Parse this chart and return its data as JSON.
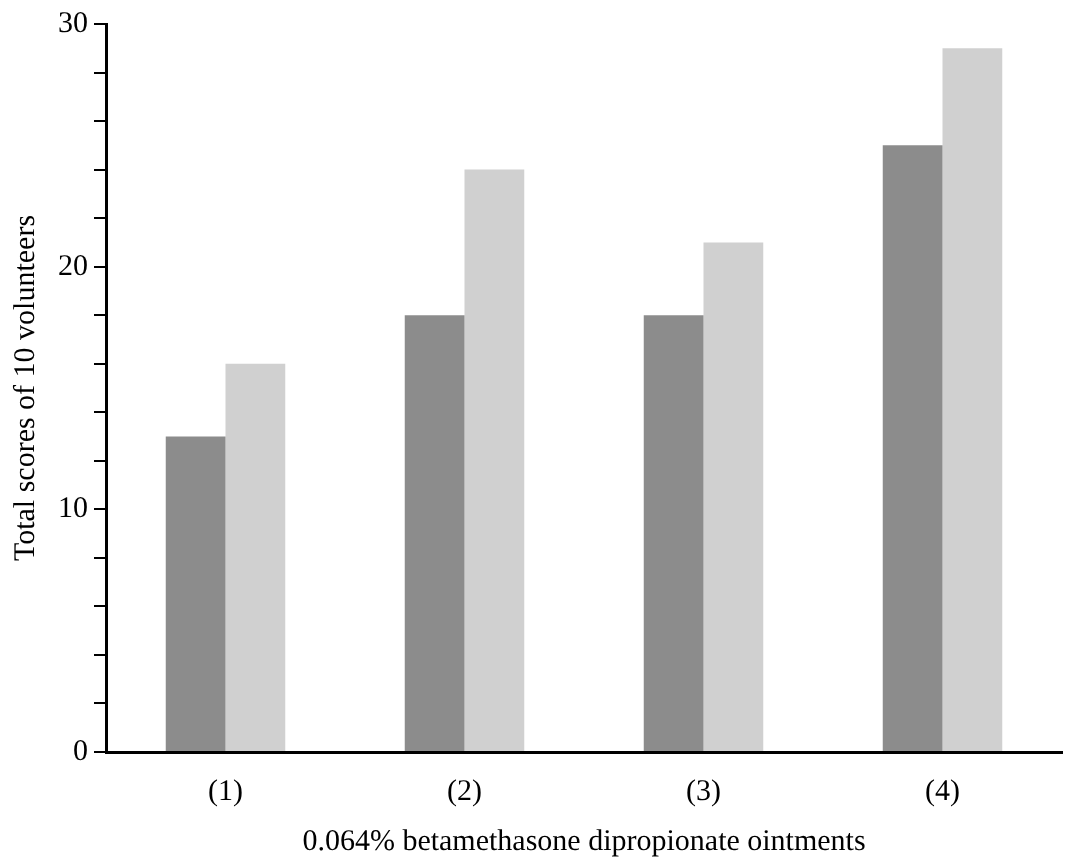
{
  "chart_data": {
    "type": "bar",
    "ylabel": "Total scores of 10 volunteers",
    "xlabel": "0.064% betamethasone dipropionate ointments",
    "categories": [
      "(1)",
      "(2)",
      "(3)",
      "(4)"
    ],
    "series": [
      {
        "color": "#8c8c8c",
        "values": [
          13,
          18,
          18,
          25
        ]
      },
      {
        "color": "#d0d0d0",
        "values": [
          16,
          24,
          21,
          29
        ]
      }
    ],
    "ylim": [
      0,
      30
    ],
    "yticks": [
      0,
      {
        "value": 2,
        "label": null
      },
      {
        "value": 4,
        "label": null
      },
      {
        "value": 6,
        "label": null
      },
      {
        "value": 8,
        "label": null
      },
      10,
      {
        "value": 12,
        "label": null
      },
      {
        "value": 14,
        "label": null
      },
      {
        "value": 16,
        "label": null
      },
      {
        "value": 18,
        "label": null
      },
      20,
      {
        "value": 22,
        "label": null
      },
      {
        "value": 24,
        "label": null
      },
      {
        "value": 26,
        "label": null
      },
      {
        "value": 28,
        "label": null
      },
      30
    ],
    "grid": false,
    "legend": false
  }
}
